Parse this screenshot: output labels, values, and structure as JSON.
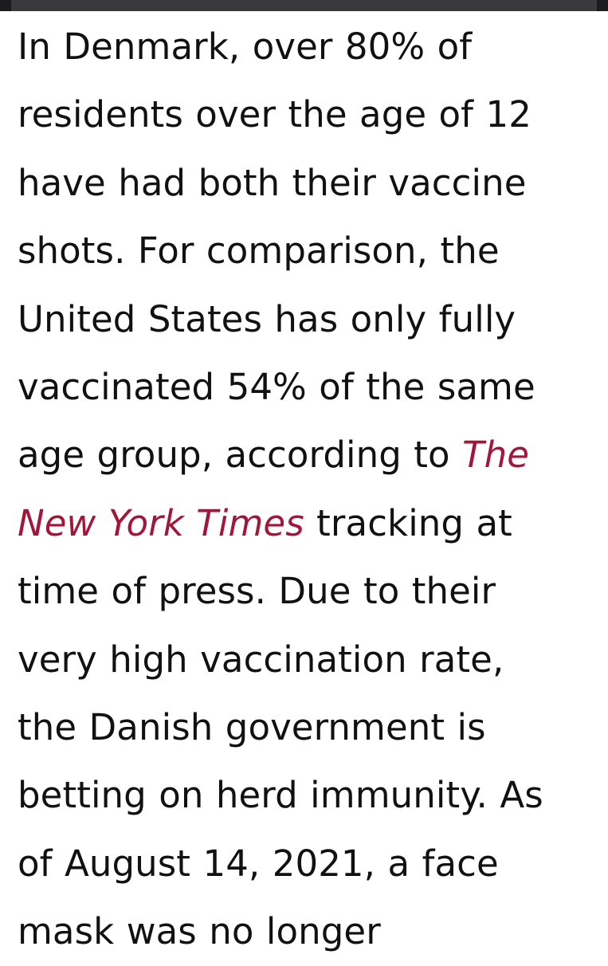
{
  "article": {
    "lines": [
      "In Denmark, over 80% of",
      "residents over the age of 12",
      "have had both their vaccine",
      "shots. For comparison, the",
      "United States has only fully",
      "vaccinated 54% of the same",
      "age group, according to ",
      " tracking at",
      "time of press. Due to their",
      "very high vaccination rate,",
      "the Danish government is",
      "betting on herd immunity. As",
      "of August 14, 2021, a face",
      "mask was no longer"
    ],
    "link_part1": "The",
    "link_part2": "New York Times"
  },
  "colors": {
    "text": "#111111",
    "link": "#a3163a",
    "top_bar": "#3a3a3c"
  }
}
